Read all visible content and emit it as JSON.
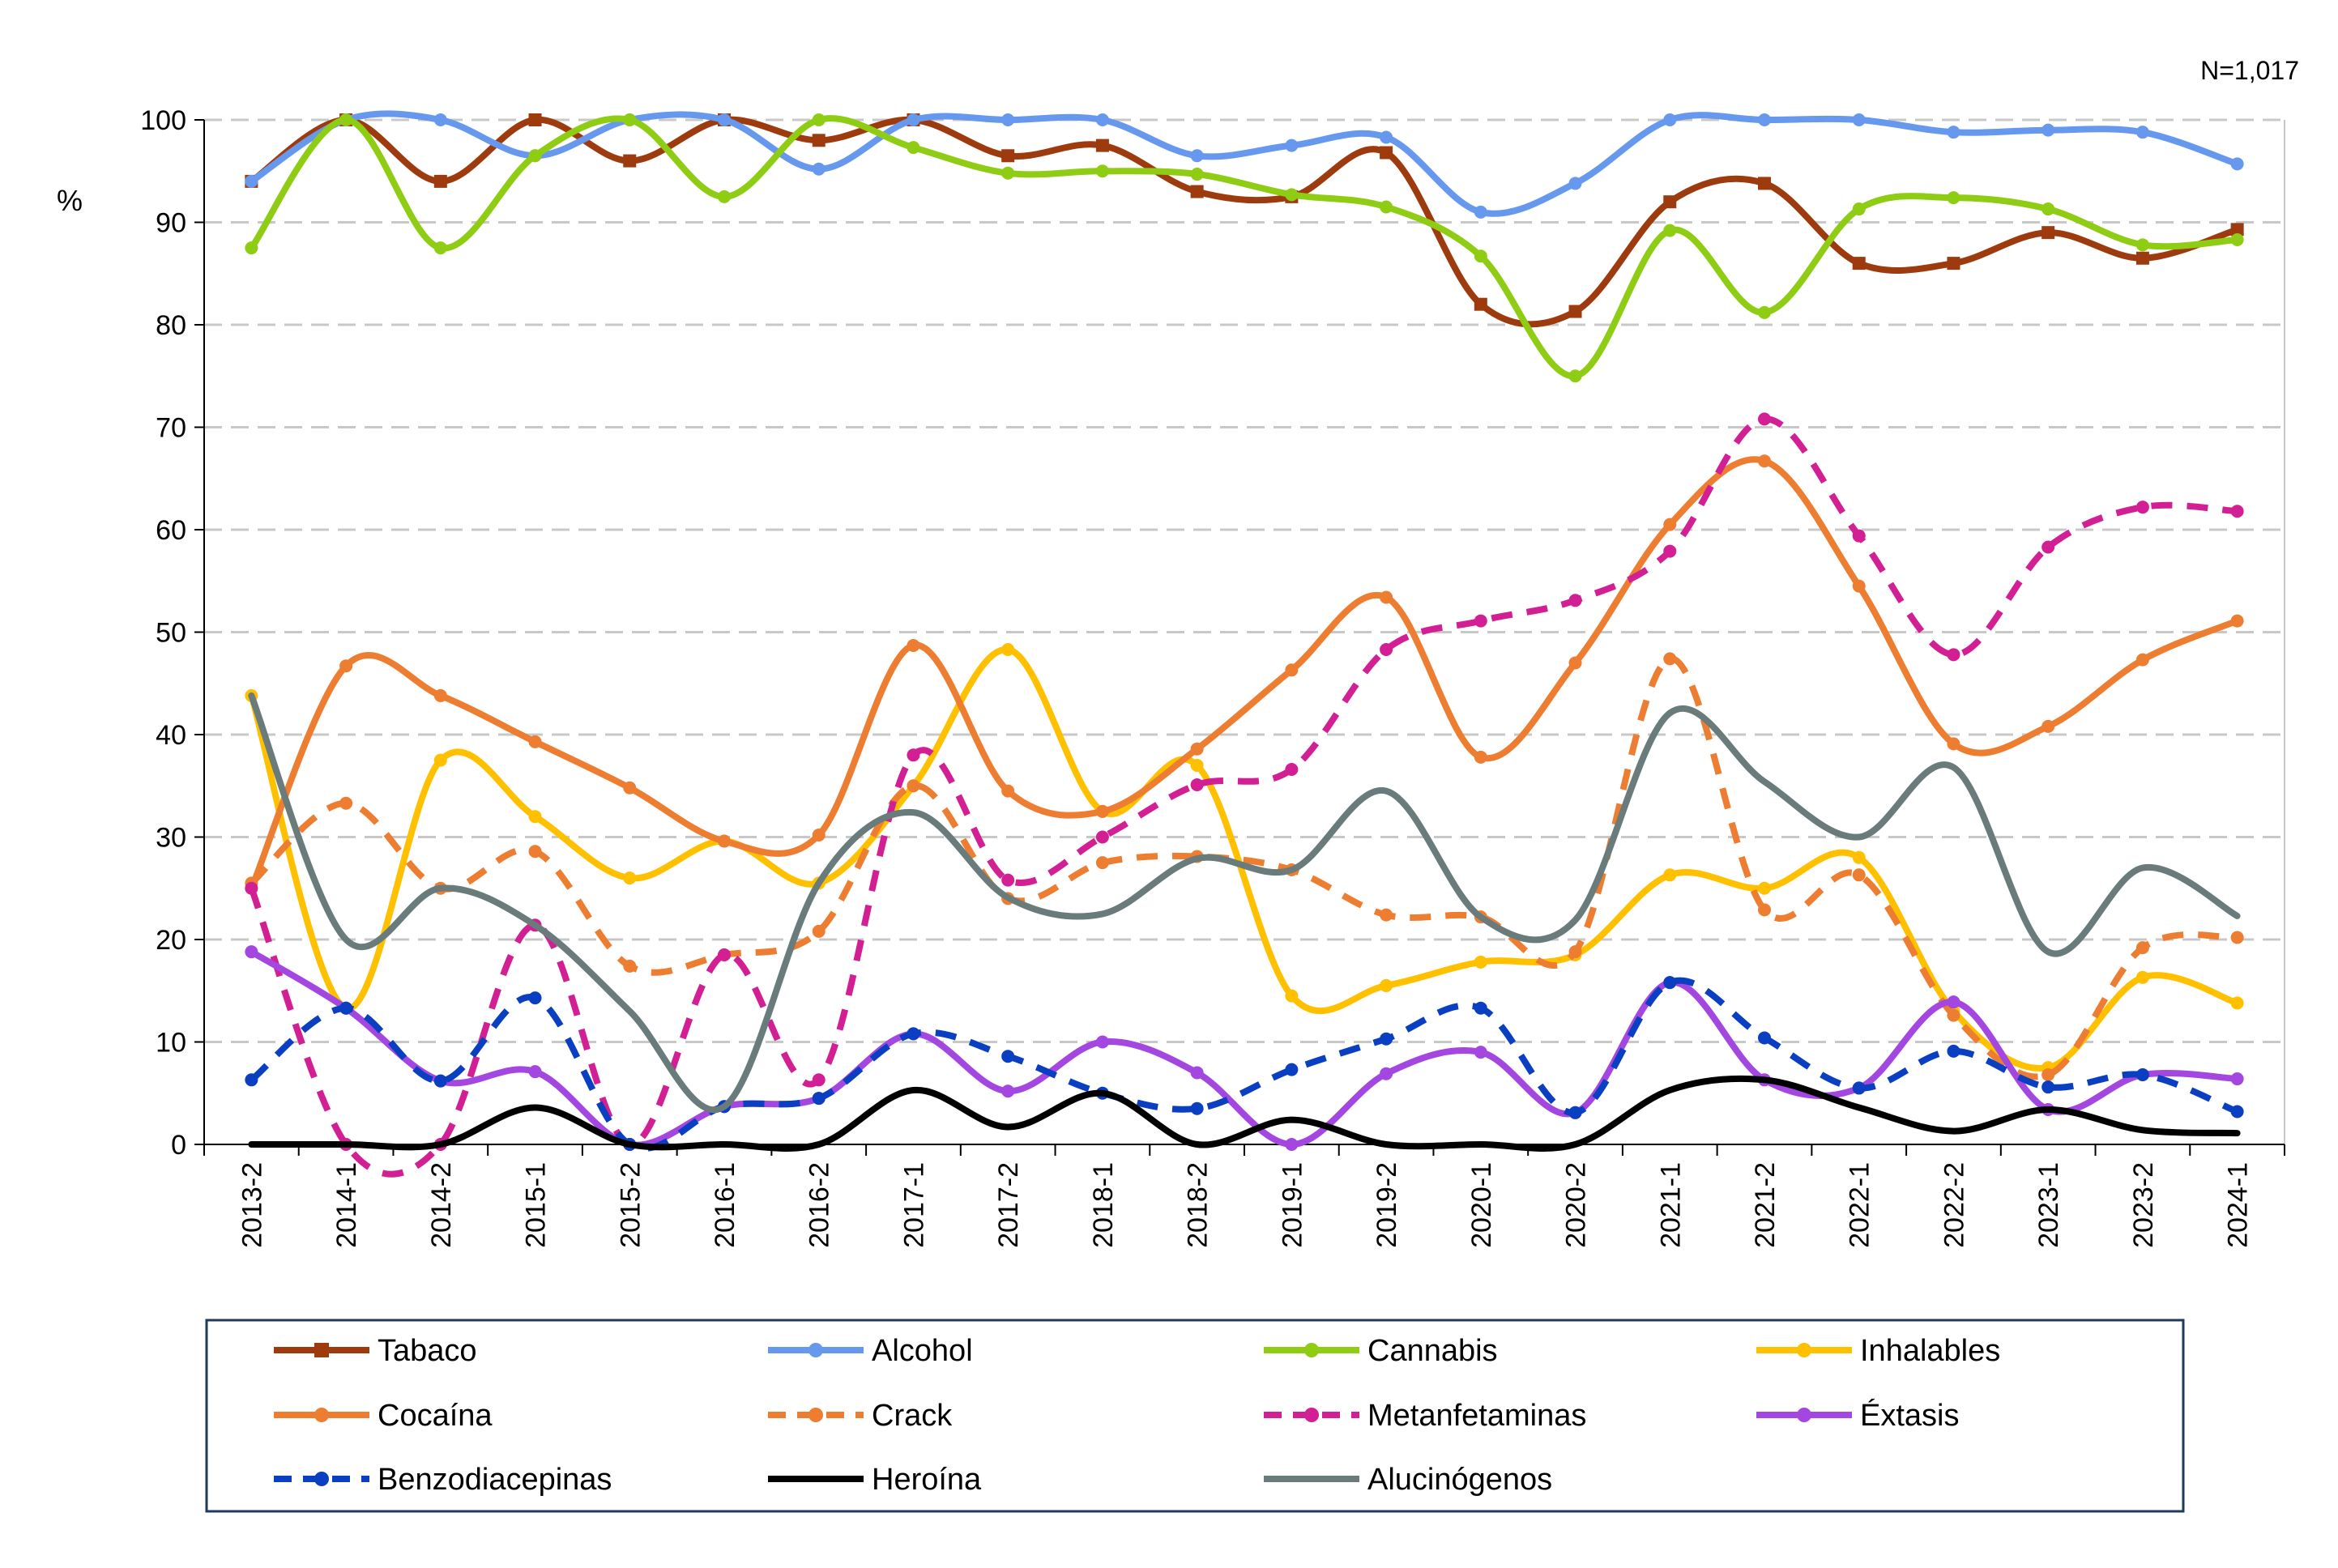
{
  "chart_data": {
    "type": "line",
    "note": "N=1,017",
    "ylabel": "%",
    "ylim": [
      0,
      100
    ],
    "yticks": [
      0,
      10,
      20,
      30,
      40,
      50,
      60,
      70,
      80,
      90,
      100
    ],
    "grid": "horizontal dashed",
    "legend_position": "bottom",
    "categories": [
      "2013-2",
      "2014-1",
      "2014-2",
      "2015-1",
      "2015-2",
      "2016-1",
      "2016-2",
      "2017-1",
      "2017-2",
      "2018-1",
      "2018-2",
      "2019-1",
      "2019-2",
      "2020-1",
      "2020-2",
      "2021-1",
      "2021-2",
      "2022-1",
      "2022-2",
      "2023-1",
      "2023-2",
      "2024-1"
    ],
    "series": [
      {
        "name": "Tabaco",
        "color": "#9E3B0E",
        "dash": "solid",
        "marker": "square",
        "values": [
          94,
          100,
          94,
          100,
          96,
          100,
          98,
          100,
          96.5,
          97.5,
          93,
          92.5,
          96.8,
          82,
          81.3,
          92,
          93.8,
          86,
          86,
          89,
          86.5,
          89.3
        ]
      },
      {
        "name": "Alcohol",
        "color": "#6699EE",
        "dash": "solid",
        "marker": "circle",
        "values": [
          94,
          100,
          100,
          96.5,
          100,
          100,
          95.2,
          100,
          100,
          100,
          96.5,
          97.5,
          98.3,
          91,
          93.8,
          100,
          100,
          100,
          98.8,
          99,
          98.8,
          95.7
        ]
      },
      {
        "name": "Cannabis",
        "color": "#8FCC14",
        "dash": "solid",
        "marker": "circle",
        "values": [
          87.5,
          100,
          87.5,
          96.5,
          100,
          92.5,
          100,
          97.3,
          94.8,
          95,
          94.7,
          92.7,
          91.5,
          86.7,
          75,
          89.2,
          81.2,
          91.3,
          92.4,
          91.3,
          87.8,
          88.3
        ]
      },
      {
        "name": "Inhalables",
        "color": "#FFC000",
        "dash": "solid",
        "marker": "circle",
        "values": [
          43.8,
          13.3,
          37.5,
          32,
          26,
          29.6,
          25.5,
          35,
          48.3,
          32.5,
          37,
          14.5,
          15.5,
          17.8,
          18.5,
          26.3,
          25,
          28,
          13,
          7.5,
          16.3,
          13.8
        ]
      },
      {
        "name": "Cocaína",
        "color": "#ED7D31",
        "dash": "solid",
        "marker": "circle",
        "values": [
          25,
          46.7,
          43.8,
          39.3,
          34.8,
          29.6,
          30.2,
          48.7,
          34.5,
          32.5,
          38.6,
          46.3,
          53.4,
          37.8,
          47,
          60.5,
          66.7,
          54.5,
          39.1,
          40.8,
          47.3,
          51.1
        ]
      },
      {
        "name": "Crack",
        "color": "#ED7D31",
        "dash": "dashed",
        "marker": "circle",
        "values": [
          25.5,
          33.3,
          25,
          28.6,
          17.4,
          18.5,
          20.8,
          35,
          24,
          27.5,
          28.1,
          26.8,
          22.4,
          22.2,
          18.8,
          47.4,
          22.9,
          26.3,
          12.6,
          6.8,
          19.2,
          20.2
        ]
      },
      {
        "name": "Metanfetaminas",
        "color": "#D31F94",
        "dash": "dashed",
        "marker": "circle",
        "values": [
          25,
          0,
          0,
          21.4,
          0,
          18.5,
          6.3,
          38,
          25.8,
          30,
          35.1,
          36.6,
          48.3,
          51.1,
          53.1,
          57.9,
          70.8,
          59.4,
          47.8,
          58.3,
          62.2,
          61.8
        ]
      },
      {
        "name": "Éxtasis",
        "color": "#A347E0",
        "dash": "solid",
        "marker": "circle",
        "values": [
          18.8,
          13.3,
          6.2,
          7.1,
          0,
          3.7,
          4.5,
          10.8,
          5.2,
          10,
          7,
          0,
          6.9,
          9,
          3.1,
          15.8,
          6.3,
          5.5,
          13.9,
          3.4,
          6.8,
          6.4
        ]
      },
      {
        "name": "Benzodiacepinas",
        "color": "#0A3FC2",
        "dash": "dashed",
        "marker": "circle",
        "values": [
          6.3,
          13.3,
          6.2,
          14.3,
          0,
          3.7,
          4.5,
          10.8,
          8.6,
          5,
          3.5,
          7.3,
          10.3,
          13.3,
          3.1,
          15.8,
          10.4,
          5.5,
          9.1,
          5.6,
          6.8,
          3.2
        ]
      },
      {
        "name": "Heroína",
        "color": "#000000",
        "dash": "solid",
        "marker": "none",
        "values": [
          0,
          0,
          0,
          3.6,
          0,
          0,
          0,
          5.3,
          1.7,
          5,
          0,
          2.4,
          0,
          0,
          0,
          5.3,
          6.3,
          3.6,
          1.3,
          3.4,
          1.4,
          1.1
        ]
      },
      {
        "name": "Alucinógenos",
        "color": "#6A7B7B",
        "dash": "solid",
        "marker": "none",
        "values": [
          43.8,
          20,
          25,
          21.4,
          13,
          3.7,
          25.5,
          32.4,
          24.1,
          22.5,
          27.9,
          26.8,
          34.5,
          22.2,
          21.9,
          42.1,
          35.4,
          30,
          36.8,
          18.8,
          27,
          22.3
        ]
      }
    ]
  }
}
